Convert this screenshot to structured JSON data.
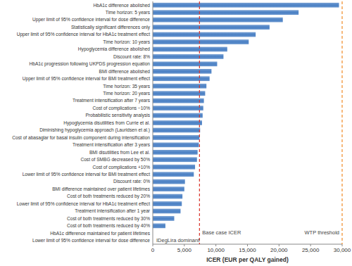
{
  "chart_data": {
    "type": "bar",
    "orientation": "horizontal",
    "color": "#4a80c4",
    "grid": false,
    "xlabel": "ICER (EUR per QALY gained)",
    "xlim": [
      0,
      30000
    ],
    "xticks": [
      0,
      {
        "value": 5000,
        "label": "5,000"
      },
      {
        "value": 10000,
        "label": "10,000"
      },
      {
        "value": 15000,
        "label": "15,000"
      },
      {
        "value": 20000,
        "label": "20,000"
      },
      {
        "value": 25000,
        "label": "25,000"
      },
      {
        "value": 30000,
        "label": "30,000"
      }
    ],
    "categories": [
      "HbA1c difference abolished",
      "Time horizon: 5 years",
      "Upper limit of 95% confidence interval for dose difference",
      "Statistically significant differences only",
      "Upper limit of 95% confidence interval for HbA1c treatment effect",
      "Time horizon: 10 years",
      "Hypoglycemia difference abolished",
      "Discount rate: 8%",
      "HbA1c progression following UKPDS progression equation",
      "BMI difference abolished",
      "Upper limit of 95% confidence interval for BMI treatment effect",
      "Time horizon: 35 years",
      "Time horizon: 20 years",
      "Treatment intensification after 7 years",
      "Cost of complications −10%",
      "Probabilistic sensitivity analysis",
      "Hypoglycemia disutilities from Currie et al.",
      "Diminishing hypoglycemia approach (Lauridsen et al.)",
      "Cost of abasaglar for basal insulin component during intensification",
      "Treatment intensification after 3 years",
      "BMI disutilities from Lee et al.",
      "Cost of SMBG decreased by 50%",
      "Cost of complications +10%",
      "Lower limit of 95% confidence interval for BMI treatment effect",
      "Discount rate: 0%",
      "BMI difference maintained over patient lifetimes",
      "Cost of both treatments reduced by 20%",
      "Lower limit of 95% confidence interval for HbA1c treatment effect",
      "Treatment intensification after 1 year",
      "Cost of both treatments reduced by 30%",
      "Cost of both treatments reduced by 40%",
      "HbA1c difference maintained for patient lifetimes",
      "Lower limit of 95% confidence interval for dose difference"
    ],
    "values": [
      29500,
      23100,
      20600,
      18500,
      16300,
      15200,
      11800,
      11200,
      10200,
      9300,
      9000,
      8500,
      8300,
      8100,
      8000,
      7900,
      7800,
      7500,
      7400,
      7300,
      7100,
      7000,
      6700,
      6500,
      5100,
      5000,
      4700,
      4600,
      4400,
      3400,
      2000,
      null,
      null
    ],
    "annotations": [
      {
        "label": "Base case ICER",
        "value": 7400,
        "color": "#d9342b",
        "line_style": "dashed"
      },
      {
        "label": "WTP threshold",
        "value": 30000,
        "color": "#f08a24",
        "line_style": "dashed"
      },
      {
        "label": "IDegLira dominant",
        "value": 0
      }
    ]
  }
}
